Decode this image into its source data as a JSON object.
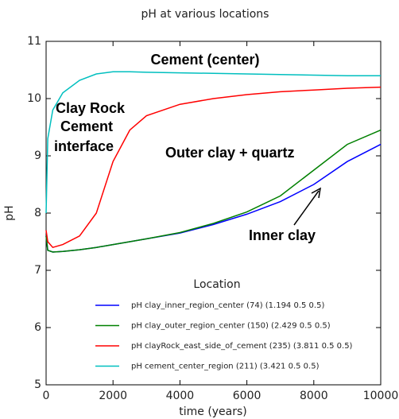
{
  "chart_data": {
    "type": "line",
    "title": "pH at various locations",
    "xlabel": "time (years)",
    "ylabel": "pH",
    "x": [
      0,
      50,
      200,
      500,
      1000,
      1500,
      2000,
      2500,
      3000,
      4000,
      5000,
      6000,
      7000,
      8000,
      9000,
      10000
    ],
    "series": [
      {
        "name": "pH clay_inner_region_center (74) (1.194 0.5 0.5)",
        "color": "#0000ff",
        "values": [
          7.6,
          7.35,
          7.32,
          7.33,
          7.36,
          7.4,
          7.45,
          7.5,
          7.55,
          7.65,
          7.8,
          7.98,
          8.2,
          8.5,
          8.9,
          9.2
        ]
      },
      {
        "name": "pH clay_outer_region_center (150) (2.429 0.5 0.5)",
        "color": "#008000",
        "values": [
          7.6,
          7.35,
          7.32,
          7.33,
          7.36,
          7.4,
          7.45,
          7.5,
          7.55,
          7.66,
          7.82,
          8.02,
          8.3,
          8.75,
          9.2,
          9.45
        ]
      },
      {
        "name": "pH clayRock_east_side_of_cement (235) (3.811 0.5 0.5)",
        "color": "#ff0000",
        "values": [
          7.7,
          7.5,
          7.4,
          7.45,
          7.6,
          8.0,
          8.9,
          9.45,
          9.7,
          9.9,
          10.0,
          10.07,
          10.12,
          10.15,
          10.18,
          10.2
        ]
      },
      {
        "name": "pH cement_center_region (211) (3.421 0.5 0.5)",
        "color": "#00bfbf",
        "values": [
          8.0,
          9.3,
          9.8,
          10.1,
          10.32,
          10.43,
          10.47,
          10.47,
          10.46,
          10.45,
          10.44,
          10.43,
          10.42,
          10.41,
          10.4,
          10.4
        ]
      }
    ],
    "xlim": [
      0,
      10000
    ],
    "xticks": [
      0,
      2000,
      4000,
      6000,
      8000,
      10000
    ],
    "ylim": [
      5,
      11
    ],
    "yticks": [
      5,
      6,
      7,
      8,
      9,
      10,
      11
    ],
    "legend_title": "Location",
    "legend": "lower center",
    "annotations": [
      "Cement (center)",
      "Clay Rock",
      "Cement",
      "interface",
      "Outer clay + quartz",
      "Inner clay"
    ]
  }
}
